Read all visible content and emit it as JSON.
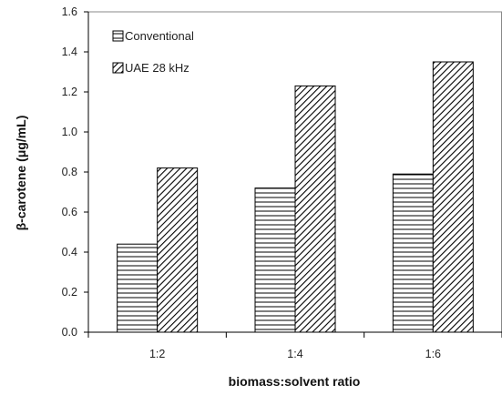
{
  "chart_data": {
    "type": "bar",
    "categories": [
      "1:2",
      "1:4",
      "1:6"
    ],
    "series": [
      {
        "name": "Conventional",
        "values": [
          0.44,
          0.72,
          0.79
        ],
        "pattern": "horizontal-lines"
      },
      {
        "name": "UAE 28 kHz",
        "values": [
          0.82,
          1.23,
          1.35
        ],
        "pattern": "diagonal-hatch"
      }
    ],
    "title": "",
    "xlabel": "biomass:solvent ratio",
    "ylabel": "β-carotene (μg/mL)",
    "ylim": [
      0,
      1.6
    ],
    "yticks": [
      "0.0",
      "0.2",
      "0.4",
      "0.6",
      "0.8",
      "1.0",
      "1.2",
      "1.4",
      "1.6"
    ],
    "grid": false,
    "legend": "top-left",
    "colors": {
      "stroke": "#000000",
      "fill": "#ffffff"
    }
  }
}
